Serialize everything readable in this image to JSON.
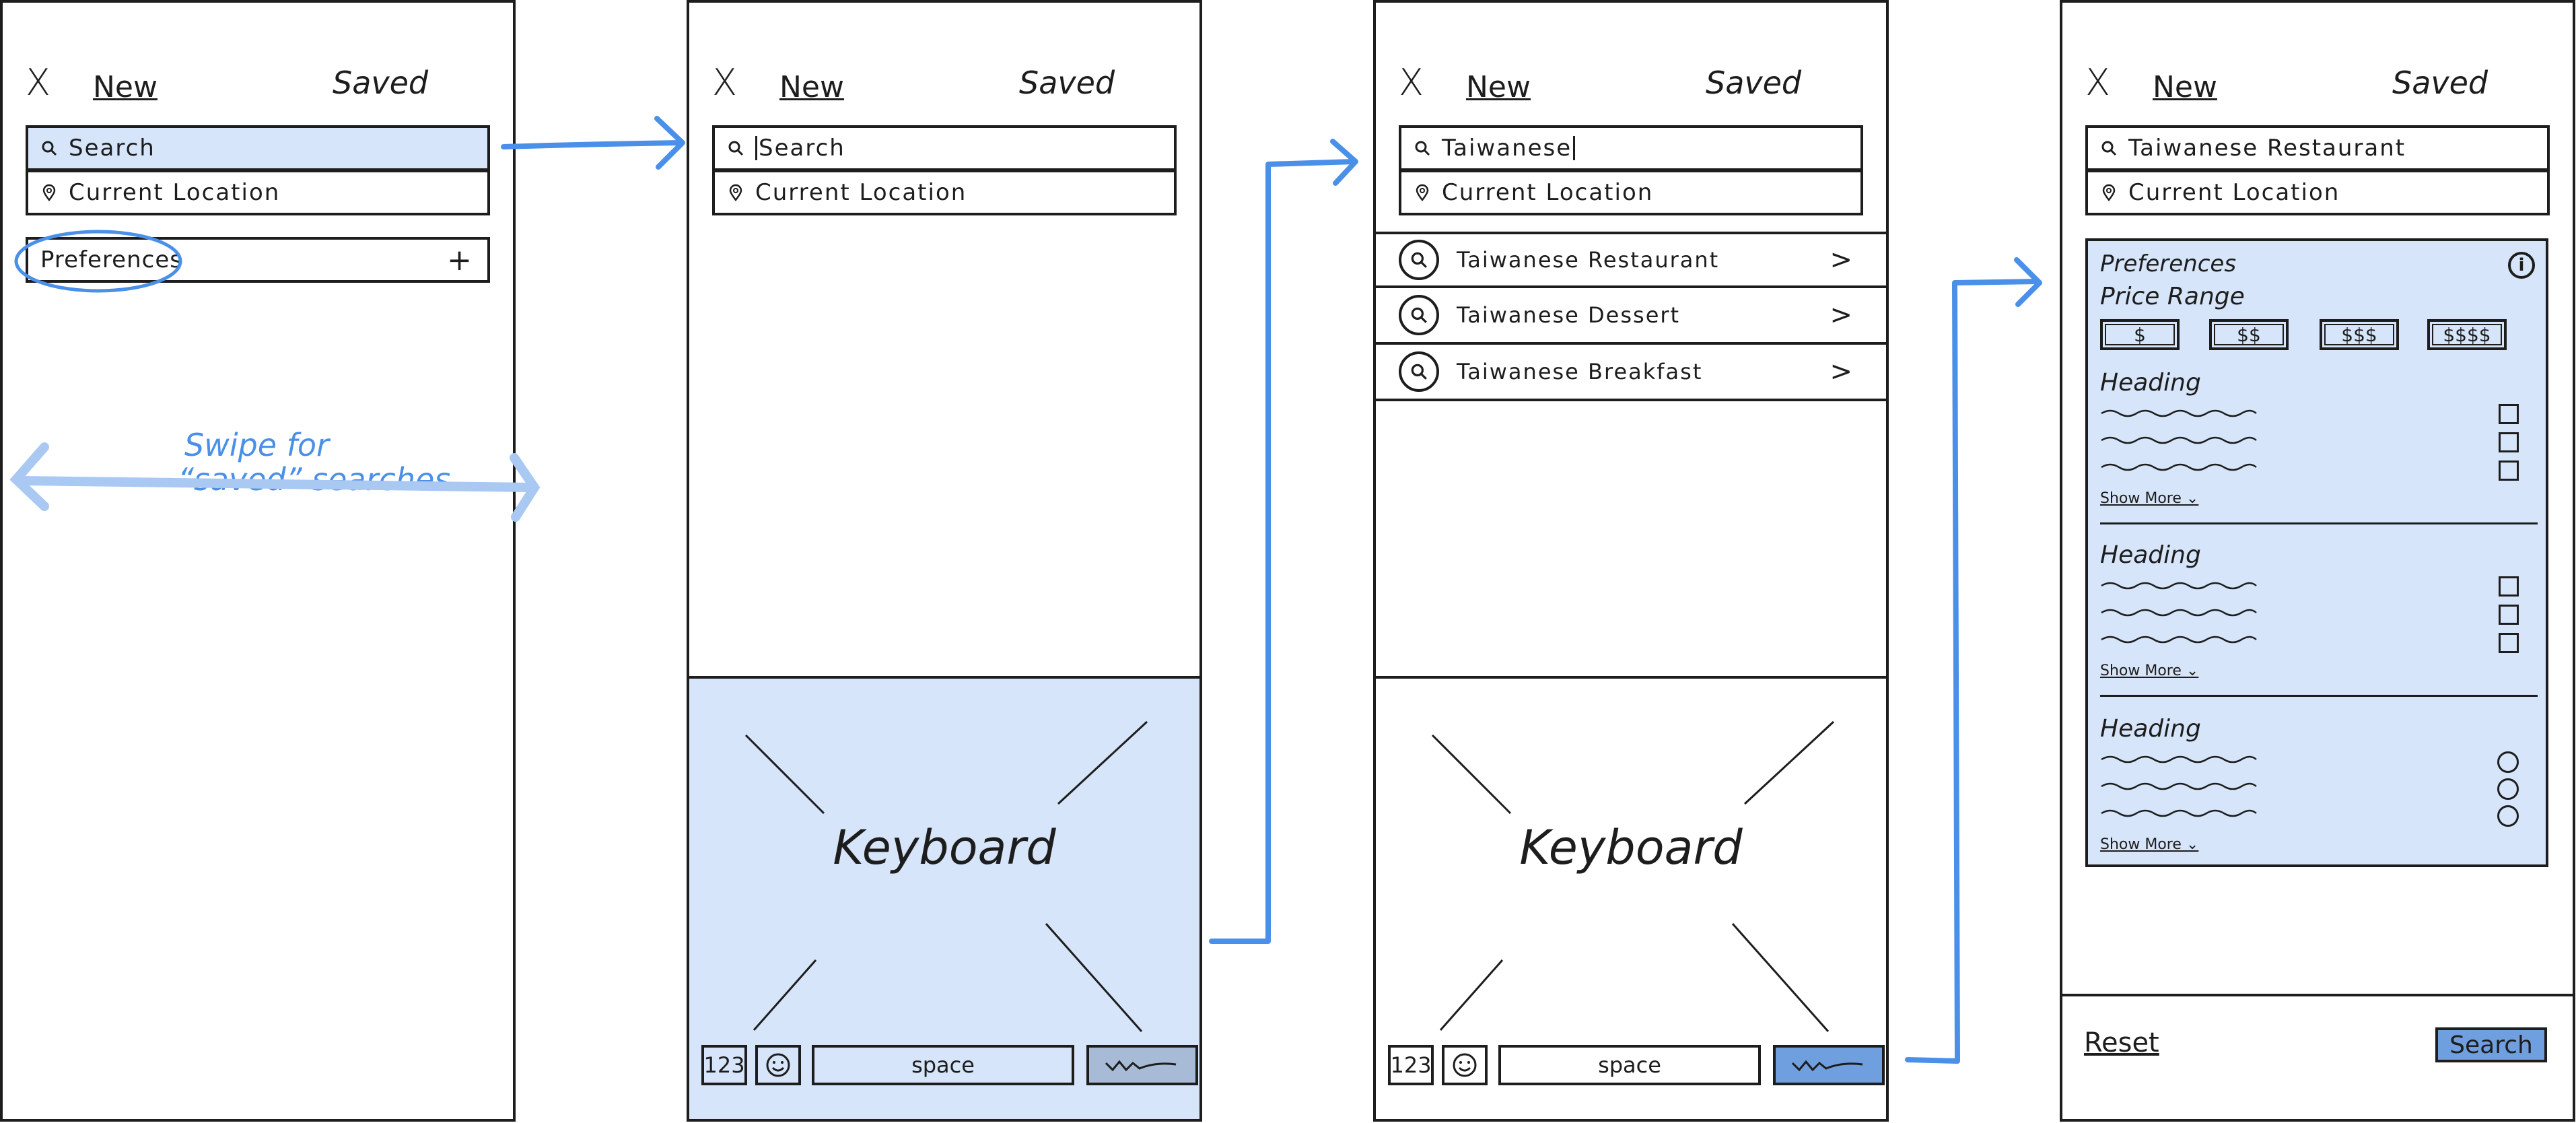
{
  "header": {
    "close": "X",
    "new": "New",
    "saved": "Saved"
  },
  "screen1": {
    "search_label": "Search",
    "location_label": "Current Location",
    "preferences_label": "Preferences",
    "add_symbol": "+",
    "annotation": [
      "Swipe for",
      "“saved” searches"
    ]
  },
  "screen2": {
    "search_label": "Search",
    "location_label": "Current Location",
    "keyboard_label": "Keyboard",
    "keys": {
      "num": "123",
      "space": "space"
    }
  },
  "screen3": {
    "search_value": "Taiwanese",
    "location_label": "Current Location",
    "suggestions": [
      "Taiwanese Restaurant",
      "Taiwanese Dessert",
      "Taiwanese Breakfast"
    ],
    "keyboard_label": "Keyboard",
    "keys": {
      "num": "123",
      "space": "space"
    }
  },
  "screen4": {
    "search_value": "Taiwanese Restaurant",
    "location_label": "Current Location",
    "preferences_title": "Preferences",
    "price_range_label": "Price Range",
    "price_options": [
      "$",
      "$$",
      "$$$",
      "$$$$"
    ],
    "sections": [
      {
        "heading": "Heading",
        "show_more": "Show More ⌄",
        "control": "checkbox"
      },
      {
        "heading": "Heading",
        "show_more": "Show More ⌄",
        "control": "checkbox"
      },
      {
        "heading": "Heading",
        "show_more": "Show More ⌄",
        "control": "radio"
      }
    ],
    "reset_label": "Reset",
    "search_button": "Search"
  },
  "colors": {
    "accent": "#4a90e8",
    "panel": "#d6e5f9",
    "button": "#6f9fde",
    "ink": "#1d1d1d"
  }
}
